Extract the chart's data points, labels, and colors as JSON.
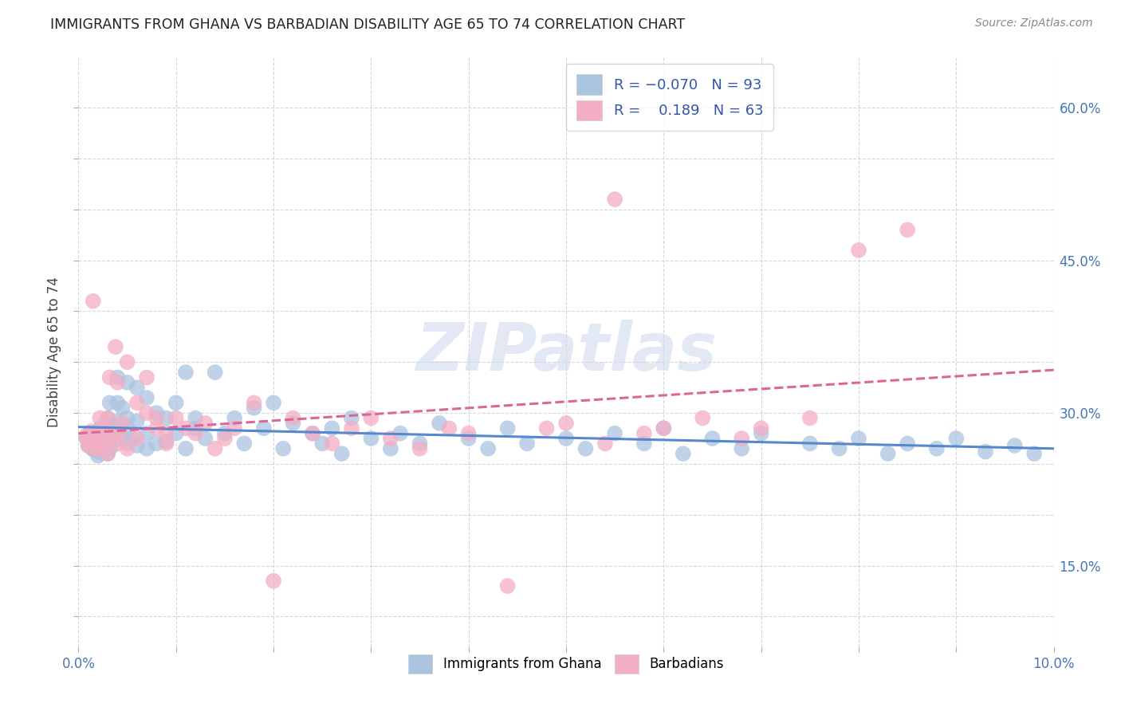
{
  "title": "IMMIGRANTS FROM GHANA VS BARBADIAN DISABILITY AGE 65 TO 74 CORRELATION CHART",
  "source": "Source: ZipAtlas.com",
  "ylabel": "Disability Age 65 to 74",
  "xlim": [
    0.0,
    0.1
  ],
  "ylim": [
    0.07,
    0.65
  ],
  "ghana_color": "#aac4e0",
  "barbadian_color": "#f4aec4",
  "ghana_R": -0.07,
  "ghana_N": 93,
  "barbadian_R": 0.189,
  "barbadian_N": 63,
  "ghana_line_color": "#5588cc",
  "barbadian_line_color": "#dd6699",
  "watermark": "ZIPatlas",
  "right_ytick_labels": [
    "",
    "15.0%",
    "",
    "",
    "30.0%",
    "",
    "",
    "45.0%",
    "",
    "",
    "60.0%"
  ],
  "right_ytick_values": [
    0.1,
    0.15,
    0.2,
    0.25,
    0.3,
    0.35,
    0.4,
    0.45,
    0.5,
    0.55,
    0.6
  ],
  "ghana_x": [
    0.0008,
    0.001,
    0.001,
    0.0012,
    0.0014,
    0.0015,
    0.0016,
    0.0017,
    0.0018,
    0.002,
    0.002,
    0.0022,
    0.0023,
    0.0024,
    0.0025,
    0.0026,
    0.003,
    0.003,
    0.003,
    0.003,
    0.0032,
    0.0033,
    0.0035,
    0.0038,
    0.004,
    0.004,
    0.004,
    0.0042,
    0.0045,
    0.005,
    0.005,
    0.005,
    0.005,
    0.0055,
    0.006,
    0.006,
    0.006,
    0.007,
    0.007,
    0.007,
    0.008,
    0.008,
    0.009,
    0.009,
    0.01,
    0.01,
    0.011,
    0.011,
    0.012,
    0.012,
    0.013,
    0.014,
    0.015,
    0.016,
    0.017,
    0.018,
    0.019,
    0.02,
    0.021,
    0.022,
    0.024,
    0.025,
    0.026,
    0.027,
    0.028,
    0.03,
    0.032,
    0.033,
    0.035,
    0.037,
    0.04,
    0.042,
    0.044,
    0.046,
    0.05,
    0.052,
    0.055,
    0.058,
    0.06,
    0.062,
    0.065,
    0.068,
    0.07,
    0.075,
    0.078,
    0.08,
    0.083,
    0.085,
    0.088,
    0.09,
    0.093,
    0.096,
    0.098
  ],
  "ghana_y": [
    0.275,
    0.272,
    0.268,
    0.28,
    0.265,
    0.271,
    0.278,
    0.263,
    0.27,
    0.282,
    0.258,
    0.274,
    0.286,
    0.261,
    0.277,
    0.269,
    0.295,
    0.283,
    0.26,
    0.272,
    0.31,
    0.266,
    0.288,
    0.275,
    0.335,
    0.31,
    0.292,
    0.28,
    0.305,
    0.33,
    0.295,
    0.27,
    0.285,
    0.275,
    0.325,
    0.292,
    0.268,
    0.315,
    0.28,
    0.265,
    0.3,
    0.27,
    0.295,
    0.272,
    0.31,
    0.28,
    0.34,
    0.265,
    0.285,
    0.295,
    0.275,
    0.34,
    0.28,
    0.295,
    0.27,
    0.305,
    0.285,
    0.31,
    0.265,
    0.29,
    0.28,
    0.27,
    0.285,
    0.26,
    0.295,
    0.275,
    0.265,
    0.28,
    0.27,
    0.29,
    0.275,
    0.265,
    0.285,
    0.27,
    0.275,
    0.265,
    0.28,
    0.27,
    0.285,
    0.26,
    0.275,
    0.265,
    0.28,
    0.27,
    0.265,
    0.275,
    0.26,
    0.27,
    0.265,
    0.275,
    0.262,
    0.268,
    0.26
  ],
  "barbadian_x": [
    0.0008,
    0.001,
    0.001,
    0.0013,
    0.0015,
    0.0016,
    0.0018,
    0.002,
    0.002,
    0.0022,
    0.0025,
    0.0027,
    0.003,
    0.003,
    0.003,
    0.0032,
    0.0035,
    0.0038,
    0.004,
    0.004,
    0.0042,
    0.0045,
    0.005,
    0.005,
    0.006,
    0.006,
    0.007,
    0.007,
    0.008,
    0.008,
    0.009,
    0.009,
    0.01,
    0.011,
    0.012,
    0.013,
    0.014,
    0.015,
    0.016,
    0.018,
    0.02,
    0.022,
    0.024,
    0.026,
    0.028,
    0.03,
    0.032,
    0.035,
    0.038,
    0.04,
    0.044,
    0.048,
    0.05,
    0.054,
    0.055,
    0.058,
    0.06,
    0.064,
    0.068,
    0.07,
    0.075,
    0.08,
    0.085
  ],
  "barbadian_y": [
    0.278,
    0.272,
    0.268,
    0.282,
    0.41,
    0.265,
    0.272,
    0.28,
    0.265,
    0.295,
    0.27,
    0.285,
    0.295,
    0.275,
    0.26,
    0.335,
    0.28,
    0.365,
    0.27,
    0.33,
    0.28,
    0.29,
    0.35,
    0.265,
    0.31,
    0.275,
    0.335,
    0.3,
    0.285,
    0.295,
    0.28,
    0.27,
    0.295,
    0.285,
    0.28,
    0.29,
    0.265,
    0.275,
    0.285,
    0.31,
    0.135,
    0.295,
    0.28,
    0.27,
    0.285,
    0.295,
    0.275,
    0.265,
    0.285,
    0.28,
    0.13,
    0.285,
    0.29,
    0.27,
    0.51,
    0.28,
    0.285,
    0.295,
    0.275,
    0.285,
    0.295,
    0.46,
    0.48
  ]
}
